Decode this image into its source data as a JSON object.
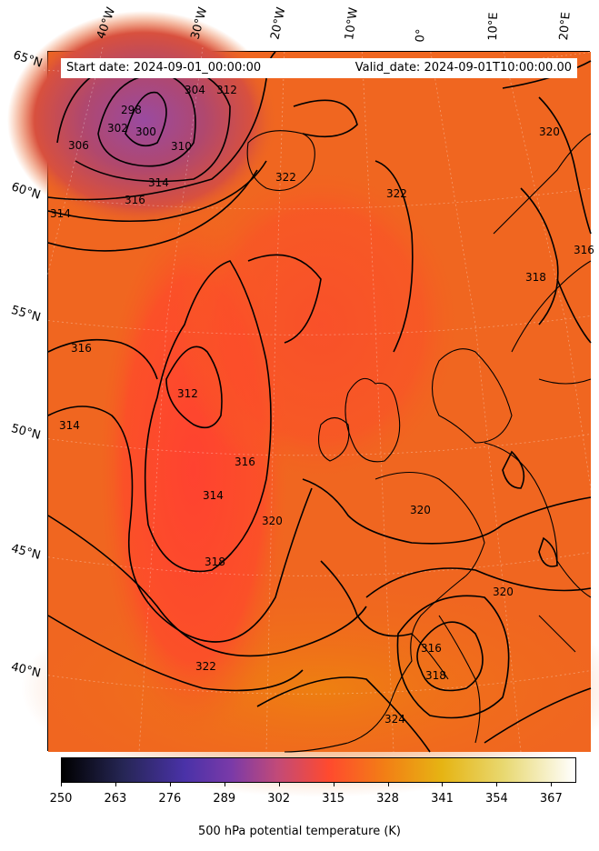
{
  "map": {
    "header": {
      "start_date": "Start date: 2024-09-01_00:00:00",
      "valid_date": "Valid_date: 2024-09-01T10:00:00.00"
    },
    "longitude_labels": [
      "40°W",
      "30°W",
      "20°W",
      "10°W",
      "0°",
      "10°E",
      "20°E"
    ],
    "latitude_labels": [
      "65°N",
      "60°N",
      "55°N",
      "50°N",
      "45°N",
      "40°N"
    ],
    "contour_labels": [
      "306",
      "302",
      "298",
      "300",
      "304",
      "312",
      "310",
      "314",
      "316",
      "322",
      "314",
      "316",
      "312",
      "314",
      "316",
      "314",
      "320",
      "318",
      "322",
      "320",
      "318",
      "320",
      "316",
      "318",
      "322",
      "324",
      "320",
      "316"
    ],
    "colors": {
      "dominant_field": "#f06a1c",
      "cold_core": "#b04a78",
      "cold_trough": "#ff4a2e",
      "contour": "#000000"
    }
  },
  "colorbar": {
    "ticks": [
      "250",
      "263",
      "276",
      "289",
      "302",
      "315",
      "328",
      "341",
      "354",
      "367"
    ],
    "label": "500 hPa potential temperature (K)",
    "range": [
      250,
      373
    ],
    "colormap": "CMRmap"
  }
}
